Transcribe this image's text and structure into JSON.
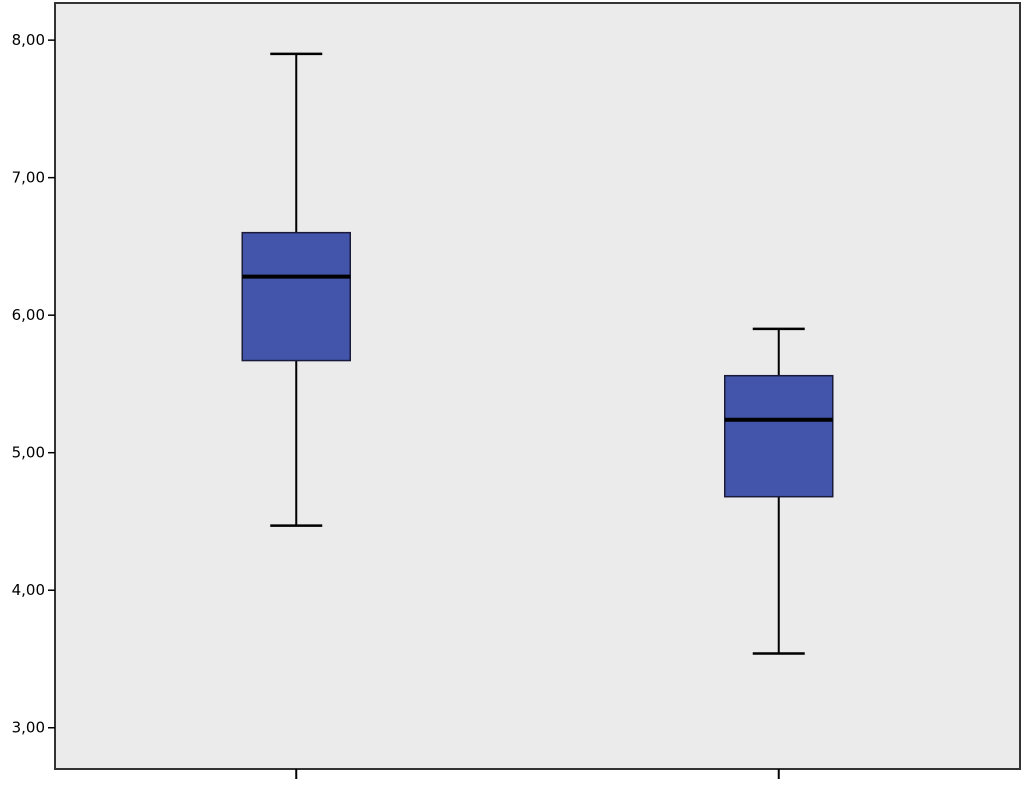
{
  "chart_data": {
    "type": "boxplot",
    "title": "",
    "xlabel": "",
    "ylabel": "",
    "ylim": [
      2.7,
      8.27
    ],
    "yticks": [
      3,
      4,
      5,
      6,
      7,
      8
    ],
    "ytick_labels": [
      "3,00",
      "4,00",
      "5,00",
      "6,00",
      "7,00",
      "8,00"
    ],
    "categories": [
      "",
      ""
    ],
    "boxes": [
      {
        "whisker_low": 4.47,
        "q1": 5.67,
        "median": 6.28,
        "q3": 6.6,
        "whisker_high": 7.9
      },
      {
        "whisker_low": 3.54,
        "q1": 4.68,
        "median": 5.24,
        "q3": 5.56,
        "whisker_high": 5.9
      }
    ],
    "grid": false,
    "plot_background": "#ebebeb",
    "box_fill": "#4355aa",
    "line_color": "#000000"
  }
}
